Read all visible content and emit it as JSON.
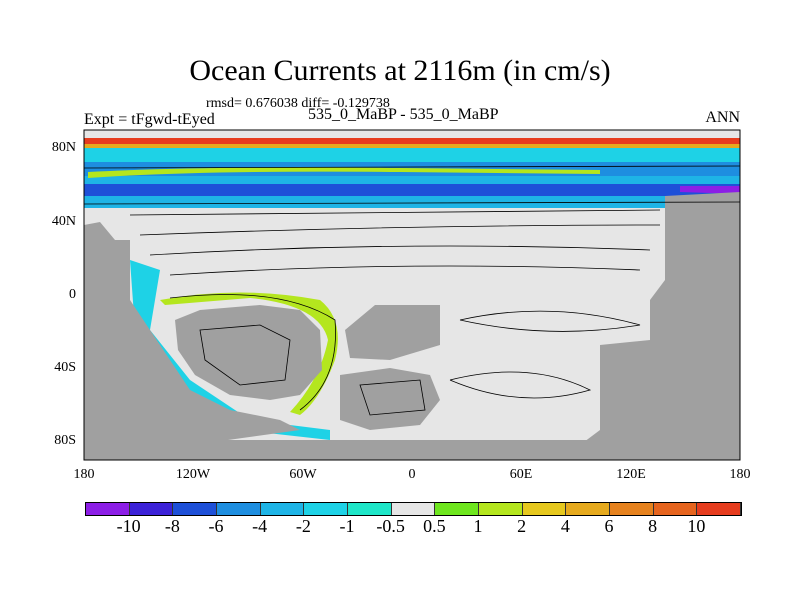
{
  "title": "Ocean Currents at 2116m (in cm/s)",
  "stats": "rmsd= 0.676038 diff= -0.129738",
  "left_label": "Expt = tFgwd-tEyed",
  "center_label": "535_0_MaBP - 535_0_MaBP",
  "right_label": "ANN",
  "y_ticks": [
    "80N",
    "40N",
    "0",
    "40S",
    "80S"
  ],
  "x_ticks": [
    "180",
    "120W",
    "60W",
    "0",
    "60E",
    "120E",
    "180"
  ],
  "colorbar": {
    "labels": [
      "-10",
      "-8",
      "-6",
      "-4",
      "-2",
      "-1",
      "-0.5",
      "0.5",
      "1",
      "2",
      "4",
      "6",
      "8",
      "10"
    ],
    "colors": [
      "#8c1ee6",
      "#3c22d8",
      "#1e50d8",
      "#1e8ee0",
      "#1eb4e6",
      "#1ed2e6",
      "#1ee6c8",
      "#e6e6e6",
      "#6ee61e",
      "#b4e61e",
      "#e6c81e",
      "#e6aa1e",
      "#e6821e",
      "#e6641e",
      "#e63c1e"
    ]
  },
  "colors": {
    "land": "#a0a0a0",
    "ocean": "#e6e6e6"
  }
}
